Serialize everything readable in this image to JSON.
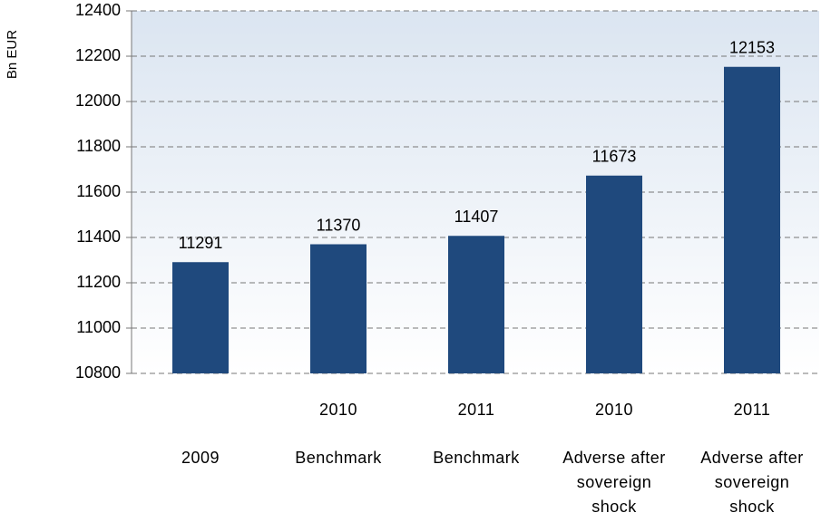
{
  "chart_data": {
    "type": "bar",
    "y_label": "Bn EUR",
    "categories": [
      [
        "2009"
      ],
      [
        "2010",
        "Benchmark"
      ],
      [
        "2011",
        "Benchmark"
      ],
      [
        "2010",
        "Adverse after",
        "sovereign",
        "shock"
      ],
      [
        "2011",
        "Adverse after",
        "sovereign",
        "shock"
      ]
    ],
    "values": [
      11291,
      11370,
      11407,
      11673,
      12153
    ],
    "color": "#1f497d",
    "ylim": [
      10800,
      12400
    ],
    "yticks": [
      10800,
      11000,
      11200,
      11400,
      11600,
      11800,
      12000,
      12200,
      12400
    ],
    "grid": true
  }
}
